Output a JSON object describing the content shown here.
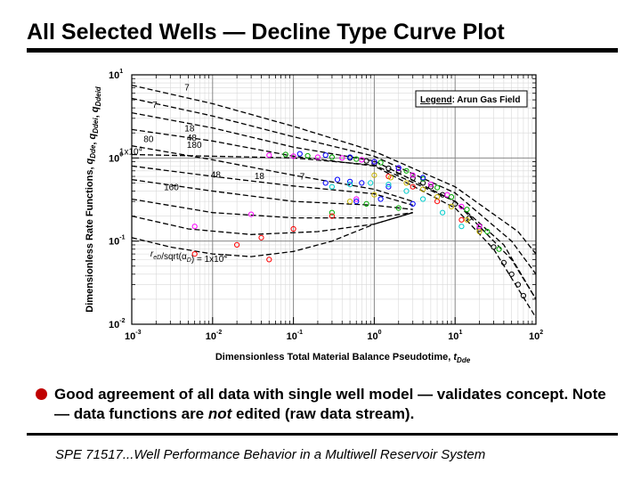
{
  "slide": {
    "title": "All Selected Wells — Decline Type Curve Plot",
    "bullet": {
      "before": "Good agreement of all data with single well model — validates concept.  Note — data functions are ",
      "emphasis": "not",
      "after": " edited (raw data stream)."
    },
    "footer": "SPE 71517...Well Performance Behavior in a Multiwell Reservoir System",
    "bullet_color": "#c00000"
  },
  "chart_data": {
    "type": "scatter",
    "x_scale": "log",
    "y_scale": "log",
    "xlim": [
      0.001,
      100
    ],
    "ylim": [
      0.01,
      1
    ],
    "grid": true,
    "xlabel": {
      "main": "Dimensionless Total Material Balance Pseudotime, ",
      "var": "t",
      "sub": "Dde"
    },
    "ylabel": "Dimensionless Rate Functions, qDde, qDdei, qDdeid",
    "ylabel_parts": [
      {
        "t": "Dimensionless Rate Functions, "
      },
      {
        "t": "q",
        "i": true
      },
      {
        "t": "Dde",
        "s": true,
        "i": true
      },
      {
        "t": ", "
      },
      {
        "t": "q",
        "i": true
      },
      {
        "t": "Ddei",
        "s": true,
        "i": true
      },
      {
        "t": ", "
      },
      {
        "t": "q",
        "i": true
      },
      {
        "t": "Ddeid",
        "s": true,
        "i": true
      }
    ],
    "x_ticks": [
      {
        "value": 0.001,
        "base": "10",
        "exp": "-3"
      },
      {
        "value": 0.01,
        "base": "10",
        "exp": "-2"
      },
      {
        "value": 0.1,
        "base": "10",
        "exp": "-1"
      },
      {
        "value": 1,
        "base": "10",
        "exp": "0"
      },
      {
        "value": 10,
        "base": "10",
        "exp": "1"
      },
      {
        "value": 100,
        "base": "10",
        "exp": "2"
      }
    ],
    "y_ticks": [
      {
        "value": 0.01,
        "base": "10",
        "exp": "-2"
      },
      {
        "value": 0.1,
        "base": "10",
        "exp": "-1"
      },
      {
        "value": 1,
        "base": "10",
        "exp": "0"
      },
      {
        "value": 10,
        "base": "10",
        "exp": "1"
      }
    ],
    "legend": {
      "title": "Legend",
      "text": ": Arun Gas Field",
      "placement": "top-right"
    },
    "annotations": [
      {
        "text": "7",
        "x": 0.0045,
        "y": 6.5
      },
      {
        "text": "7",
        "x": 0.0018,
        "y": 4.0
      },
      {
        "text": "18",
        "x": 0.0045,
        "y": 2.1
      },
      {
        "text": "80",
        "x": 0.0014,
        "y": 1.55
      },
      {
        "text": "48",
        "x": 0.0048,
        "y": 1.62
      },
      {
        "text": "180",
        "x": 0.0048,
        "y": 1.32
      },
      {
        "text": "1x10",
        "x": 0.0007,
        "y": 1.1,
        "sup": "4"
      },
      {
        "text": "48",
        "x": 0.0095,
        "y": 0.58
      },
      {
        "text": "18",
        "x": 0.033,
        "y": 0.56
      },
      {
        "text": "7",
        "x": 0.12,
        "y": 0.55
      },
      {
        "text": "160",
        "x": 0.0025,
        "y": 0.41
      }
    ],
    "stems": {
      "label_parts": [
        {
          "t": "r",
          "i": true
        },
        {
          "t": "eD",
          "s": true,
          "i": true
        },
        {
          "t": "/sqrt("
        },
        {
          "t": "α"
        },
        {
          "t": "D",
          "s": true,
          "i": true
        },
        {
          "t": ") = 1x10"
        },
        {
          "t": "4",
          "sup": true
        }
      ],
      "label_at": {
        "x": 0.0017,
        "y": 0.065
      },
      "curves": [
        {
          "name": "stem-1",
          "points": [
            [
              0.001,
              0.11
            ],
            [
              0.003,
              0.085
            ],
            [
              0.01,
              0.07
            ],
            [
              0.03,
              0.065
            ],
            [
              0.1,
              0.075
            ],
            [
              0.3,
              0.1
            ],
            [
              1,
              0.16
            ],
            [
              3,
              0.22
            ]
          ]
        },
        {
          "name": "stem-2",
          "points": [
            [
              0.001,
              0.2
            ],
            [
              0.005,
              0.14
            ],
            [
              0.03,
              0.12
            ],
            [
              0.2,
              0.13
            ],
            [
              1,
              0.16
            ],
            [
              3,
              0.22
            ]
          ]
        },
        {
          "name": "stem-3",
          "points": [
            [
              0.001,
              0.32
            ],
            [
              0.01,
              0.22
            ],
            [
              0.1,
              0.19
            ],
            [
              1,
              0.19
            ],
            [
              3,
              0.22
            ]
          ]
        },
        {
          "name": "stem-4",
          "points": [
            [
              0.001,
              0.55
            ],
            [
              0.01,
              0.4
            ],
            [
              0.1,
              0.3
            ],
            [
              1,
              0.27
            ],
            [
              3,
              0.24
            ]
          ]
        },
        {
          "name": "stem-5",
          "points": [
            [
              0.001,
              0.8
            ],
            [
              0.01,
              0.6
            ],
            [
              0.1,
              0.46
            ],
            [
              1,
              0.37
            ],
            [
              3,
              0.27
            ]
          ]
        },
        {
          "name": "stem-6",
          "points": [
            [
              0.001,
              1.4
            ],
            [
              0.01,
              0.95
            ],
            [
              0.1,
              0.62
            ],
            [
              1,
              0.42
            ],
            [
              3,
              0.3
            ]
          ]
        },
        {
          "name": "stem-7",
          "points": [
            [
              0.001,
              2.2
            ],
            [
              0.01,
              1.6
            ],
            [
              0.1,
              1.05
            ],
            [
              1,
              0.8
            ],
            [
              10,
              0.25
            ],
            [
              30,
              0.08
            ],
            [
              100,
              0.012
            ]
          ]
        },
        {
          "name": "stem-8",
          "points": [
            [
              0.001,
              3.5
            ],
            [
              0.01,
              2.3
            ],
            [
              0.1,
              1.35
            ],
            [
              1,
              0.92
            ],
            [
              10,
              0.3
            ],
            [
              40,
              0.09
            ],
            [
              100,
              0.02
            ]
          ]
        },
        {
          "name": "stem-9",
          "points": [
            [
              0.001,
              5.2
            ],
            [
              0.01,
              3.2
            ],
            [
              0.1,
              1.8
            ],
            [
              1,
              1.05
            ],
            [
              10,
              0.38
            ],
            [
              50,
              0.1
            ],
            [
              100,
              0.04
            ]
          ]
        },
        {
          "name": "stem-10",
          "points": [
            [
              0.001,
              7.5
            ],
            [
              0.01,
              4.5
            ],
            [
              0.1,
              2.4
            ],
            [
              1,
              1.2
            ],
            [
              10,
              0.45
            ],
            [
              60,
              0.13
            ],
            [
              100,
              0.07
            ]
          ]
        },
        {
          "name": "stem-11",
          "points": [
            [
              0.001,
              1.1
            ],
            [
              0.01,
              1.05
            ],
            [
              0.1,
              1.0
            ],
            [
              1,
              0.82
            ],
            [
              10,
              0.3
            ],
            [
              50,
              0.06
            ],
            [
              100,
              0.02
            ]
          ]
        }
      ]
    },
    "series": [
      {
        "color": "#000000",
        "points": [
          [
            0.5,
            1.0
          ],
          [
            0.8,
            0.92
          ],
          [
            1,
            0.85
          ],
          [
            1.5,
            0.75
          ],
          [
            2,
            0.68
          ],
          [
            3,
            0.57
          ],
          [
            4,
            0.5
          ],
          [
            5,
            0.45
          ],
          [
            7,
            0.36
          ],
          [
            10,
            0.28
          ],
          [
            15,
            0.19
          ],
          [
            20,
            0.14
          ],
          [
            30,
            0.085
          ],
          [
            40,
            0.055
          ],
          [
            50,
            0.04
          ],
          [
            60,
            0.03
          ],
          [
            70,
            0.022
          ]
        ]
      },
      {
        "color": "#ff00ff",
        "points": [
          [
            0.05,
            1.08
          ],
          [
            0.1,
            1.05
          ],
          [
            0.2,
            1.02
          ],
          [
            0.4,
            1.0
          ],
          [
            0.7,
            0.95
          ],
          [
            1,
            0.9
          ],
          [
            2,
            0.75
          ],
          [
            3,
            0.62
          ],
          [
            5,
            0.48
          ],
          [
            8,
            0.36
          ],
          [
            12,
            0.26
          ],
          [
            20,
            0.15
          ],
          [
            0.006,
            0.15
          ],
          [
            0.03,
            0.21
          ],
          [
            0.6,
            0.32
          ]
        ]
      },
      {
        "color": "#00aa00",
        "points": [
          [
            0.08,
            1.1
          ],
          [
            0.15,
            1.06
          ],
          [
            0.3,
            1.02
          ],
          [
            0.6,
            0.97
          ],
          [
            1.2,
            0.88
          ],
          [
            2.5,
            0.7
          ],
          [
            4,
            0.56
          ],
          [
            6,
            0.44
          ],
          [
            9,
            0.34
          ],
          [
            14,
            0.24
          ],
          [
            25,
            0.13
          ],
          [
            35,
            0.08
          ],
          [
            0.3,
            0.22
          ],
          [
            0.8,
            0.28
          ],
          [
            2,
            0.25
          ]
        ]
      },
      {
        "color": "#0000ff",
        "points": [
          [
            0.12,
            1.12
          ],
          [
            0.25,
            1.08
          ],
          [
            0.5,
            1.02
          ],
          [
            1,
            0.9
          ],
          [
            2,
            0.76
          ],
          [
            4,
            0.58
          ],
          [
            0.25,
            0.5
          ],
          [
            0.35,
            0.55
          ],
          [
            0.5,
            0.52
          ],
          [
            0.7,
            0.5
          ],
          [
            1.5,
            0.45
          ],
          [
            0.6,
            0.3
          ],
          [
            1.2,
            0.32
          ],
          [
            3,
            0.28
          ]
        ]
      },
      {
        "color": "#ff0000",
        "points": [
          [
            0.02,
            0.09
          ],
          [
            0.04,
            0.11
          ],
          [
            0.1,
            0.14
          ],
          [
            0.3,
            0.2
          ],
          [
            1.5,
            0.6
          ],
          [
            3,
            0.45
          ],
          [
            6,
            0.3
          ],
          [
            12,
            0.18
          ],
          [
            0.006,
            0.07
          ],
          [
            0.05,
            0.06
          ]
        ]
      },
      {
        "color": "#c8b400",
        "points": [
          [
            1,
            0.62
          ],
          [
            1.6,
            0.58
          ],
          [
            2.5,
            0.5
          ],
          [
            4,
            0.42
          ],
          [
            6,
            0.34
          ],
          [
            9,
            0.26
          ],
          [
            14,
            0.18
          ],
          [
            20,
            0.13
          ],
          [
            0.5,
            0.3
          ],
          [
            1,
            0.36
          ]
        ]
      },
      {
        "color": "#00cccc",
        "points": [
          [
            0.3,
            0.45
          ],
          [
            0.5,
            0.48
          ],
          [
            0.9,
            0.5
          ],
          [
            1.5,
            0.48
          ],
          [
            2.5,
            0.4
          ],
          [
            4,
            0.32
          ],
          [
            7,
            0.22
          ],
          [
            12,
            0.15
          ]
        ]
      }
    ]
  }
}
